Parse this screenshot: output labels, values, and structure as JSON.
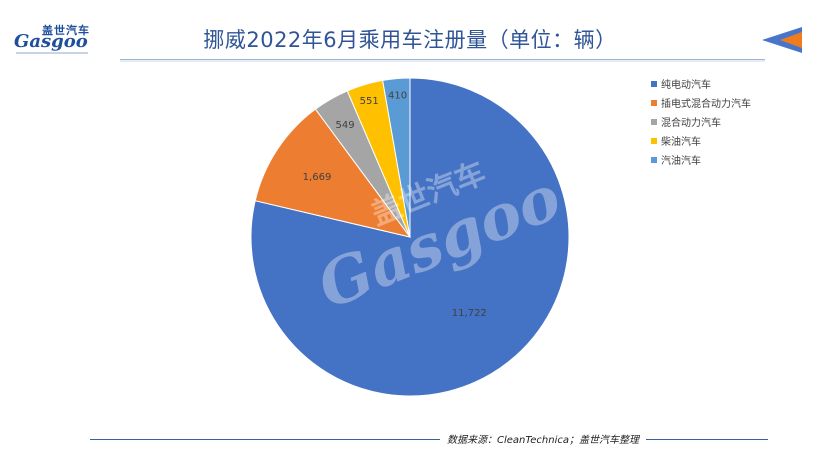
{
  "title": "挪威2022年6月乘用车注册量（单位：辆）",
  "logo": {
    "cn": "盖世汽车",
    "en": "Gasgoo"
  },
  "watermark": {
    "cn": "盖世汽车",
    "en": "Gasgoo"
  },
  "footer": {
    "source": "数据来源：CleanTechnica；盖世汽车整理"
  },
  "colors": {
    "title": "#2f5597",
    "series": [
      "#4472c4",
      "#ed7d31",
      "#a5a5a5",
      "#ffc000",
      "#5b9bd5"
    ],
    "corner_blue": "#4a74c9",
    "corner_orange": "#f07c20"
  },
  "chart_data": {
    "type": "pie",
    "title": "挪威2022年6月乘用车注册量（单位：辆）",
    "categories": [
      "纯电动汽车",
      "插电式混合动力汽车",
      "混合动力汽车",
      "柴油汽车",
      "汽油汽车"
    ],
    "values": [
      11722,
      1669,
      549,
      551,
      410
    ],
    "labels": [
      "11,722",
      "1,669",
      "549",
      "551",
      "410"
    ],
    "legend": "right",
    "start_angle_deg": 0,
    "direction": "clockwise"
  }
}
